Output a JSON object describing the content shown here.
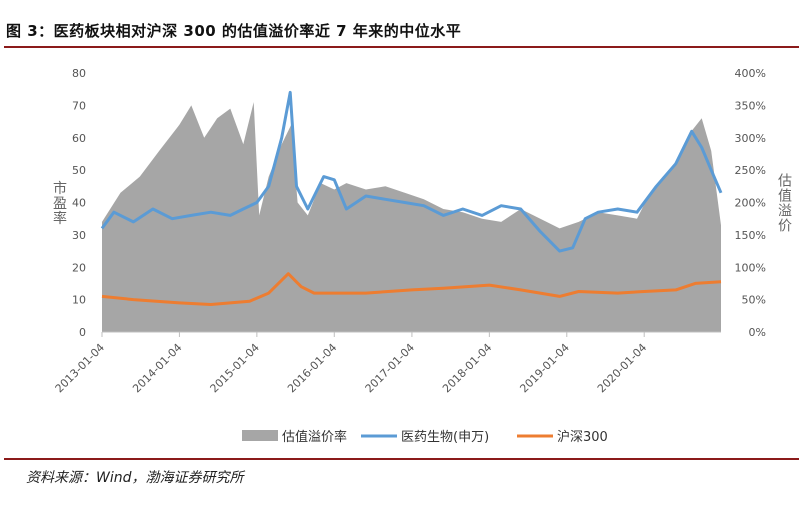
{
  "figure": {
    "title": "图 3：医药板块相对沪深 300 的估值溢价率近 7 年来的中位水平",
    "source": "资料来源：Wind，渤海证券研究所"
  },
  "colors": {
    "premium": "#a6a6a6",
    "pharma": "#5b9bd5",
    "hs300": "#ed7d31",
    "rule": "#8b1a1a"
  },
  "chart_data": {
    "type": "line",
    "x_start": "2013-01-04",
    "x_end": "2020-12-31",
    "x_ticks": [
      "2013-01-04",
      "2014-01-04",
      "2015-01-04",
      "2016-01-04",
      "2017-01-04",
      "2018-01-04",
      "2019-01-04",
      "2020-01-04"
    ],
    "y_left": {
      "label": "市盈率",
      "lim": [
        0,
        80
      ],
      "ticks": [
        "0",
        "10",
        "20",
        "30",
        "40",
        "50",
        "60",
        "70",
        "80"
      ]
    },
    "y_right": {
      "label": "估值溢价",
      "lim": [
        0,
        400
      ],
      "ticks": [
        "0%",
        "50%",
        "100%",
        "150%",
        "200%",
        "250%",
        "300%",
        "350%",
        "400%"
      ]
    },
    "series": [
      {
        "name": "估值溢价率",
        "kind": "area",
        "axis": "right",
        "points": [
          [
            "2013-01-04",
            170
          ],
          [
            "2013-04-01",
            215
          ],
          [
            "2013-07-01",
            240
          ],
          [
            "2013-10-01",
            280
          ],
          [
            "2014-01-04",
            320
          ],
          [
            "2014-03-01",
            350
          ],
          [
            "2014-05-01",
            300
          ],
          [
            "2014-07-01",
            330
          ],
          [
            "2014-09-01",
            345
          ],
          [
            "2014-11-01",
            290
          ],
          [
            "2014-12-20",
            355
          ],
          [
            "2015-01-15",
            180
          ],
          [
            "2015-03-01",
            240
          ],
          [
            "2015-05-01",
            290
          ],
          [
            "2015-06-15",
            320
          ],
          [
            "2015-07-15",
            200
          ],
          [
            "2015-09-01",
            180
          ],
          [
            "2015-11-01",
            230
          ],
          [
            "2016-01-04",
            220
          ],
          [
            "2016-03-01",
            230
          ],
          [
            "2016-06-01",
            220
          ],
          [
            "2016-09-01",
            225
          ],
          [
            "2016-12-01",
            215
          ],
          [
            "2017-03-01",
            205
          ],
          [
            "2017-06-01",
            190
          ],
          [
            "2017-09-01",
            185
          ],
          [
            "2017-12-01",
            175
          ],
          [
            "2018-03-01",
            170
          ],
          [
            "2018-06-01",
            190
          ],
          [
            "2018-09-01",
            175
          ],
          [
            "2018-12-01",
            160
          ],
          [
            "2019-03-01",
            170
          ],
          [
            "2019-06-01",
            185
          ],
          [
            "2019-09-01",
            180
          ],
          [
            "2019-12-01",
            175
          ],
          [
            "2020-02-01",
            215
          ],
          [
            "2020-04-01",
            240
          ],
          [
            "2020-06-01",
            260
          ],
          [
            "2020-08-01",
            305
          ],
          [
            "2020-10-01",
            330
          ],
          [
            "2020-11-15",
            280
          ],
          [
            "2020-12-31",
            165
          ]
        ]
      },
      {
        "name": "医药生物(申万)",
        "kind": "line",
        "axis": "left",
        "points": [
          [
            "2013-01-04",
            32
          ],
          [
            "2013-03-01",
            37
          ],
          [
            "2013-06-01",
            34
          ],
          [
            "2013-09-01",
            38
          ],
          [
            "2013-12-01",
            35
          ],
          [
            "2014-03-01",
            36
          ],
          [
            "2014-06-01",
            37
          ],
          [
            "2014-09-01",
            36
          ],
          [
            "2014-11-01",
            38
          ],
          [
            "2015-01-04",
            40
          ],
          [
            "2015-03-01",
            45
          ],
          [
            "2015-05-01",
            60
          ],
          [
            "2015-06-10",
            74
          ],
          [
            "2015-07-10",
            45
          ],
          [
            "2015-09-01",
            38
          ],
          [
            "2015-11-15",
            48
          ],
          [
            "2016-01-04",
            47
          ],
          [
            "2016-03-01",
            38
          ],
          [
            "2016-06-01",
            42
          ],
          [
            "2016-09-01",
            41
          ],
          [
            "2016-12-01",
            40
          ],
          [
            "2017-03-01",
            39
          ],
          [
            "2017-06-01",
            36
          ],
          [
            "2017-09-01",
            38
          ],
          [
            "2017-12-01",
            36
          ],
          [
            "2018-03-01",
            39
          ],
          [
            "2018-06-01",
            38
          ],
          [
            "2018-09-01",
            31
          ],
          [
            "2018-12-01",
            25
          ],
          [
            "2019-02-01",
            26
          ],
          [
            "2019-04-01",
            35
          ],
          [
            "2019-06-01",
            37
          ],
          [
            "2019-09-01",
            38
          ],
          [
            "2019-12-01",
            37
          ],
          [
            "2020-03-01",
            45
          ],
          [
            "2020-06-01",
            52
          ],
          [
            "2020-08-15",
            62
          ],
          [
            "2020-10-01",
            57
          ],
          [
            "2020-11-15",
            50
          ],
          [
            "2020-12-31",
            43
          ]
        ]
      },
      {
        "name": "沪深300",
        "kind": "line",
        "axis": "left",
        "points": [
          [
            "2013-01-04",
            11
          ],
          [
            "2013-06-01",
            10
          ],
          [
            "2014-01-04",
            9
          ],
          [
            "2014-06-01",
            8.5
          ],
          [
            "2014-12-01",
            9.5
          ],
          [
            "2015-03-01",
            12
          ],
          [
            "2015-06-01",
            18
          ],
          [
            "2015-08-01",
            14
          ],
          [
            "2015-10-01",
            12
          ],
          [
            "2016-01-04",
            12
          ],
          [
            "2016-06-01",
            12
          ],
          [
            "2017-01-04",
            13
          ],
          [
            "2017-06-01",
            13.5
          ],
          [
            "2018-01-04",
            14.5
          ],
          [
            "2018-06-01",
            13
          ],
          [
            "2018-12-01",
            11
          ],
          [
            "2019-03-01",
            12.5
          ],
          [
            "2019-09-01",
            12
          ],
          [
            "2020-01-04",
            12.5
          ],
          [
            "2020-06-01",
            13
          ],
          [
            "2020-09-01",
            15
          ],
          [
            "2020-12-31",
            15.5
          ]
        ]
      }
    ],
    "legend": {
      "placement": "bottom",
      "items": [
        {
          "label": "估值溢价率",
          "key": "premium"
        },
        {
          "label": "医药生物(申万)",
          "key": "pharma"
        },
        {
          "label": "沪深300",
          "key": "hs300"
        }
      ]
    }
  }
}
